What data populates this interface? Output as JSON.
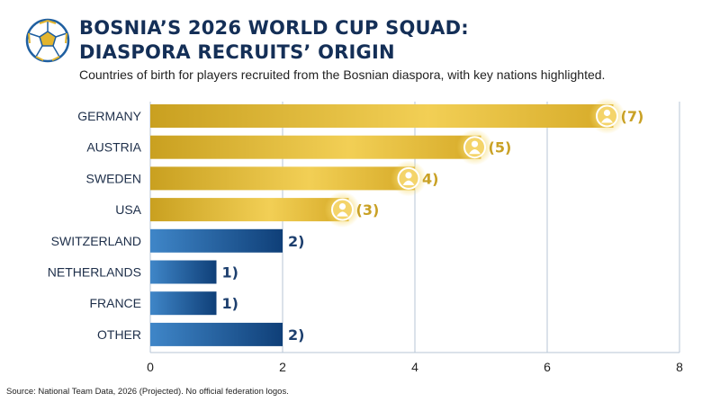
{
  "title_line1": "BOSNIA’S 2026 WORLD CUP SQUAD:",
  "title_line2": "DIASPORA RECRUITS’ ORIGIN",
  "subtitle": "Countries of birth for players recruited from the Bosnian diaspora, with key nations highlighted.",
  "source": "Source: National Team Data, 2026 (Projected). No official federation logos.",
  "colors": {
    "title": "#142f57",
    "highlight": "#e3b52e",
    "highlight_label": "#c9a125",
    "standard": "#1f5fa0",
    "standard_label": "#1d3f6e",
    "grid": "#b7c6d6"
  },
  "chart_data": {
    "type": "bar",
    "orientation": "horizontal",
    "categories": [
      "GERMANY",
      "AUSTRIA",
      "SWEDEN",
      "USA",
      "SWITZERLAND",
      "NETHERLANDS",
      "FRANCE",
      "OTHER"
    ],
    "values": [
      7,
      5,
      4,
      3,
      2,
      1,
      1,
      2
    ],
    "data_labels": [
      "(7)",
      "(5)",
      "4)",
      "(3)",
      "2)",
      "1)",
      "1)",
      "2)"
    ],
    "highlighted": [
      true,
      true,
      true,
      true,
      false,
      false,
      false,
      false
    ],
    "player_icon": [
      true,
      true,
      true,
      true,
      false,
      false,
      false,
      false
    ],
    "xlim": [
      0,
      8
    ],
    "xticks": [
      "0",
      "2",
      "4",
      "6",
      "8"
    ],
    "grid": "vertical"
  }
}
